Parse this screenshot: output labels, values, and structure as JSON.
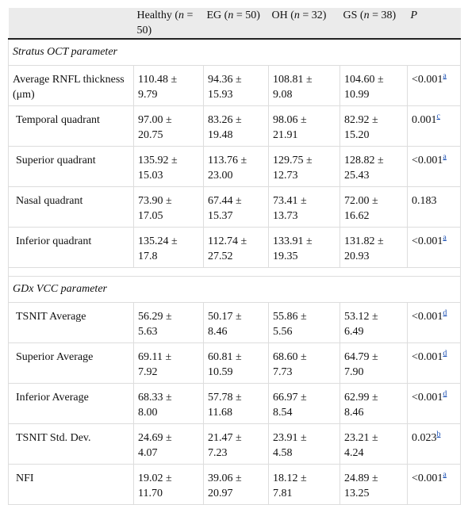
{
  "header": [
    [
      {
        "text": "Healthy ("
      },
      {
        "text": "n",
        "italic": true
      },
      {
        "text": " = 50)"
      }
    ],
    [
      {
        "text": "EG ("
      },
      {
        "text": "n",
        "italic": true
      },
      {
        "text": " = 50)"
      }
    ],
    [
      {
        "text": "OH ("
      },
      {
        "text": "n",
        "italic": true
      },
      {
        "text": " = 32)"
      }
    ],
    [
      {
        "text": "GS ("
      },
      {
        "text": "n",
        "italic": true
      },
      {
        "text": " = 38)"
      }
    ],
    [
      {
        "text": "P",
        "italic": true
      }
    ]
  ],
  "sections": [
    {
      "title": "Stratus OCT parameter",
      "rows": [
        {
          "label": "Average RNFL thickness (μm)",
          "values": [
            "110.48 ± 9.79",
            "94.36 ± 15.93",
            "108.81 ± 9.08",
            "104.60 ± 10.99"
          ],
          "p": {
            "value": "<0.001",
            "note": "a"
          }
        },
        {
          "label": "Temporal quadrant",
          "values": [
            "97.00 ± 20.75",
            "83.26 ± 19.48",
            "98.06 ± 21.91",
            "82.92 ± 15.20"
          ],
          "p": {
            "value": "0.001",
            "note": "c"
          }
        },
        {
          "label": "Superior quadrant",
          "values": [
            "135.92 ± 15.03",
            "113.76 ± 23.00",
            "129.75 ± 12.73",
            "128.82 ± 25.43"
          ],
          "p": {
            "value": "<0.001",
            "note": "a"
          }
        },
        {
          "label": "Nasal quadrant",
          "values": [
            "73.90 ± 17.05",
            "67.44 ± 15.37",
            "73.41 ± 13.73",
            "72.00 ± 16.62"
          ],
          "p": {
            "value": "0.183"
          }
        },
        {
          "label": "Inferior quadrant",
          "values": [
            "135.24 ± 17.8",
            "112.74 ± 27.52",
            "133.91 ± 19.35",
            "131.82 ± 20.93"
          ],
          "p": {
            "value": "<0.001",
            "note": "a"
          }
        }
      ]
    },
    {
      "title": "GDx VCC parameter",
      "rows": [
        {
          "label": "TSNIT Average",
          "values": [
            "56.29 ± 5.63",
            "50.17 ± 8.46",
            "55.86 ± 5.56",
            "53.12 ± 6.49"
          ],
          "p": {
            "value": "<0.001",
            "note": "d"
          }
        },
        {
          "label": "Superior Average",
          "values": [
            "69.11 ± 7.92",
            "60.81 ± 10.59",
            "68.60 ± 7.73",
            "64.79 ± 7.90"
          ],
          "p": {
            "value": "<0.001",
            "note": "d"
          }
        },
        {
          "label": "Inferior Average",
          "values": [
            "68.33 ± 8.00",
            "57.78 ± 11.68",
            "66.97 ± 8.54",
            "62.99 ± 8.46"
          ],
          "p": {
            "value": "<0.001",
            "note": "d"
          }
        },
        {
          "label": "TSNIT Std. Dev.",
          "values": [
            "24.69 ± 4.07",
            "21.47 ± 7.23",
            "23.91 ± 4.58",
            "23.21 ± 4.24"
          ],
          "p": {
            "value": "0.023",
            "note": "b"
          }
        },
        {
          "label": "NFI",
          "values": [
            "19.02 ± 11.70",
            "39.06 ± 20.97",
            "18.12 ± 7.81",
            "24.89 ± 13.25"
          ],
          "p": {
            "value": "<0.001",
            "note": "a"
          }
        }
      ]
    }
  ]
}
